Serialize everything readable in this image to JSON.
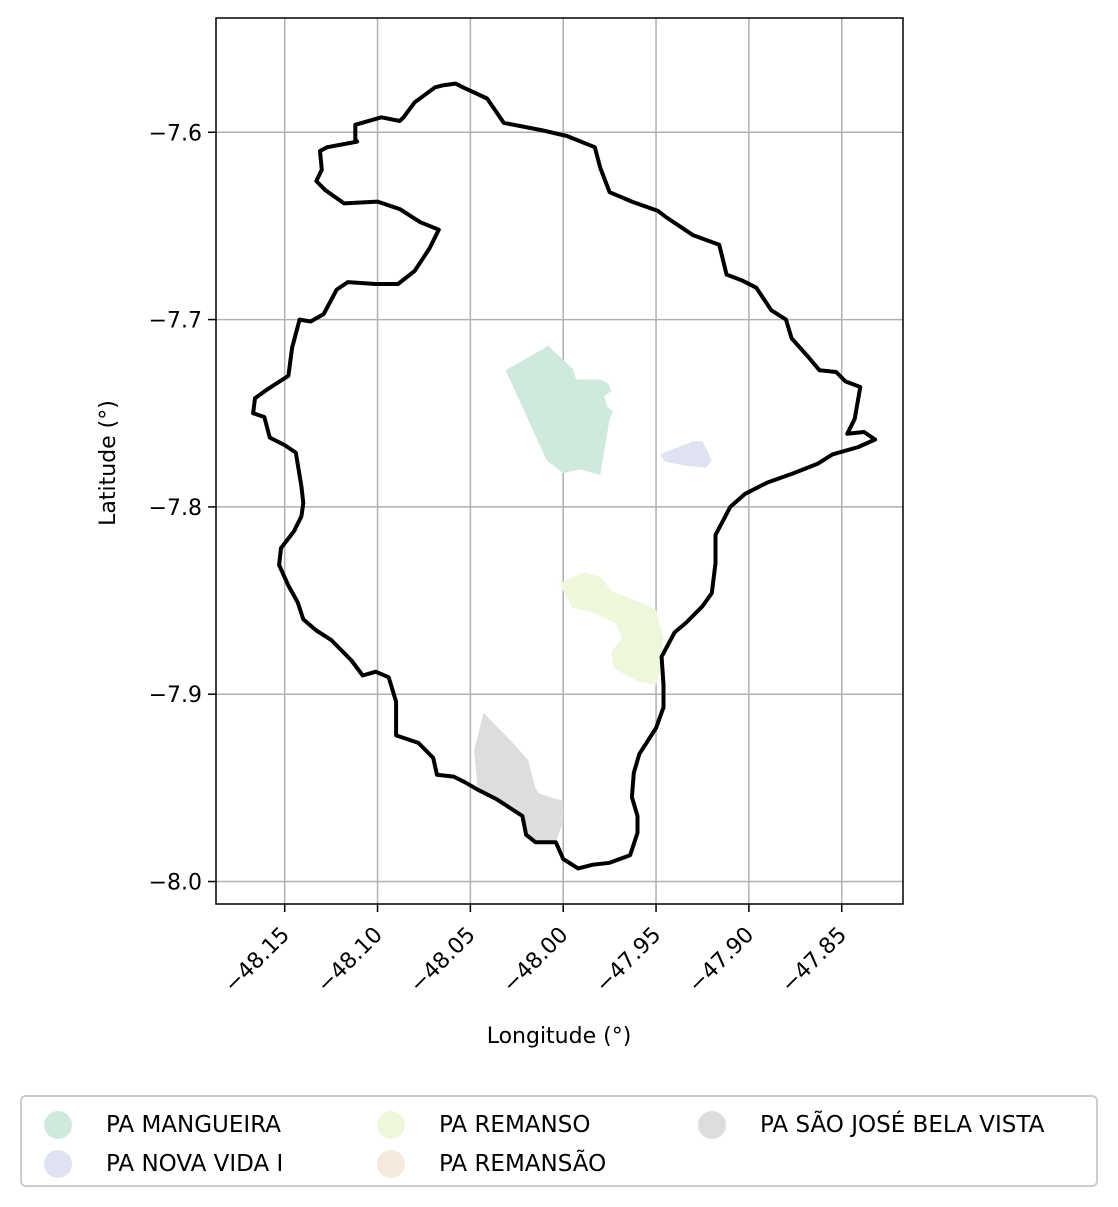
{
  "chart_data": {
    "type": "map",
    "title": "",
    "xlabel": "Longitude (°)",
    "ylabel": "Latitude (°)",
    "xlim": [
      -48.187,
      -47.817
    ],
    "ylim": [
      -8.012,
      -7.539
    ],
    "xticks": [
      -48.15,
      -48.1,
      -48.05,
      -48.0,
      -47.95,
      -47.9,
      -47.85
    ],
    "xtick_labels": [
      "−48.15",
      "−48.10",
      "−48.05",
      "−48.00",
      "−47.95",
      "−47.90",
      "−47.85"
    ],
    "yticks": [
      -7.6,
      -7.7,
      -7.8,
      -7.9,
      -8.0
    ],
    "ytick_labels": [
      "−7.6",
      "−7.7",
      "−7.8",
      "−7.9",
      "−8.0"
    ],
    "grid": true,
    "legend_position": "bottom",
    "boundary": [
      [
        -48.069,
        -7.576
      ],
      [
        -48.08,
        -7.584
      ],
      [
        -48.086,
        -7.592
      ],
      [
        -48.088,
        -7.594
      ],
      [
        -48.098,
        -7.592
      ],
      [
        -48.112,
        -7.596
      ],
      [
        -48.112,
        -7.604
      ],
      [
        -48.111,
        -7.605
      ],
      [
        -48.127,
        -7.608
      ],
      [
        -48.131,
        -7.61
      ],
      [
        -48.13,
        -7.62
      ],
      [
        -48.133,
        -7.626
      ],
      [
        -48.128,
        -7.631
      ],
      [
        -48.118,
        -7.638
      ],
      [
        -48.1,
        -7.637
      ],
      [
        -48.088,
        -7.641
      ],
      [
        -48.077,
        -7.648
      ],
      [
        -48.067,
        -7.652
      ],
      [
        -48.072,
        -7.662
      ],
      [
        -48.08,
        -7.674
      ],
      [
        -48.089,
        -7.681
      ],
      [
        -48.101,
        -7.681
      ],
      [
        -48.116,
        -7.68
      ],
      [
        -48.122,
        -7.684
      ],
      [
        -48.129,
        -7.697
      ],
      [
        -48.136,
        -7.701
      ],
      [
        -48.142,
        -7.7
      ],
      [
        -48.146,
        -7.715
      ],
      [
        -48.148,
        -7.73
      ],
      [
        -48.159,
        -7.737
      ],
      [
        -48.166,
        -7.742
      ],
      [
        -48.167,
        -7.75
      ],
      [
        -48.161,
        -7.752
      ],
      [
        -48.158,
        -7.763
      ],
      [
        -48.15,
        -7.767
      ],
      [
        -48.144,
        -7.771
      ],
      [
        -48.141,
        -7.789
      ],
      [
        -48.14,
        -7.798
      ],
      [
        -48.141,
        -7.805
      ],
      [
        -48.145,
        -7.813
      ],
      [
        -48.152,
        -7.822
      ],
      [
        -48.153,
        -7.831
      ],
      [
        -48.148,
        -7.842
      ],
      [
        -48.143,
        -7.851
      ],
      [
        -48.14,
        -7.86
      ],
      [
        -48.133,
        -7.866
      ],
      [
        -48.125,
        -7.871
      ],
      [
        -48.114,
        -7.882
      ],
      [
        -48.108,
        -7.89
      ],
      [
        -48.101,
        -7.888
      ],
      [
        -48.094,
        -7.891
      ],
      [
        -48.09,
        -7.904
      ],
      [
        -48.09,
        -7.922
      ],
      [
        -48.078,
        -7.926
      ],
      [
        -48.07,
        -7.934
      ],
      [
        -48.068,
        -7.943
      ],
      [
        -48.059,
        -7.944
      ],
      [
        -48.053,
        -7.947
      ],
      [
        -48.046,
        -7.951
      ],
      [
        -48.036,
        -7.956
      ],
      [
        -48.022,
        -7.965
      ],
      [
        -48.02,
        -7.975
      ],
      [
        -48.015,
        -7.979
      ],
      [
        -48.004,
        -7.979
      ],
      [
        -48.0,
        -7.988
      ],
      [
        -47.992,
        -7.993
      ],
      [
        -47.984,
        -7.991
      ],
      [
        -47.975,
        -7.99
      ],
      [
        -47.964,
        -7.986
      ],
      [
        -47.96,
        -7.974
      ],
      [
        -47.96,
        -7.965
      ],
      [
        -47.963,
        -7.955
      ],
      [
        -47.962,
        -7.942
      ],
      [
        -47.959,
        -7.932
      ],
      [
        -47.95,
        -7.918
      ],
      [
        -47.946,
        -7.907
      ],
      [
        -47.946,
        -7.895
      ],
      [
        -47.947,
        -7.88
      ],
      [
        -47.94,
        -7.867
      ],
      [
        -47.934,
        -7.862
      ],
      [
        -47.925,
        -7.853
      ],
      [
        -47.92,
        -7.846
      ],
      [
        -47.918,
        -7.83
      ],
      [
        -47.918,
        -7.815
      ],
      [
        -47.91,
        -7.8
      ],
      [
        -47.902,
        -7.793
      ],
      [
        -47.89,
        -7.787
      ],
      [
        -47.876,
        -7.782
      ],
      [
        -47.863,
        -7.777
      ],
      [
        -47.855,
        -7.772
      ],
      [
        -47.841,
        -7.768
      ],
      [
        -47.832,
        -7.764
      ],
      [
        -47.838,
        -7.76
      ],
      [
        -47.847,
        -7.761
      ],
      [
        -47.843,
        -7.753
      ],
      [
        -47.84,
        -7.736
      ],
      [
        -47.848,
        -7.733
      ],
      [
        -47.853,
        -7.728
      ],
      [
        -47.862,
        -7.727
      ],
      [
        -47.868,
        -7.72
      ],
      [
        -47.877,
        -7.71
      ],
      [
        -47.88,
        -7.7
      ],
      [
        -47.888,
        -7.695
      ],
      [
        -47.896,
        -7.683
      ],
      [
        -47.904,
        -7.679
      ],
      [
        -47.912,
        -7.676
      ],
      [
        -47.916,
        -7.66
      ],
      [
        -47.93,
        -7.655
      ],
      [
        -47.945,
        -7.645
      ],
      [
        -47.949,
        -7.642
      ],
      [
        -47.963,
        -7.637
      ],
      [
        -47.975,
        -7.632
      ],
      [
        -47.98,
        -7.619
      ],
      [
        -47.983,
        -7.608
      ],
      [
        -47.998,
        -7.602
      ],
      [
        -48.011,
        -7.599
      ],
      [
        -48.032,
        -7.595
      ],
      [
        -48.041,
        -7.582
      ],
      [
        -48.054,
        -7.576
      ],
      [
        -48.058,
        -7.574
      ],
      [
        -48.065,
        -7.575
      ]
    ],
    "series": [
      {
        "name": "PA MANGUEIRA",
        "color": "#cfeadd",
        "polygon": [
          [
            -48.031,
            -7.727
          ],
          [
            -48.008,
            -7.714
          ],
          [
            -48.005,
            -7.717
          ],
          [
            -47.995,
            -7.726
          ],
          [
            -47.993,
            -7.732
          ],
          [
            -47.98,
            -7.732
          ],
          [
            -47.976,
            -7.734
          ],
          [
            -47.974,
            -7.738
          ],
          [
            -47.978,
            -7.741
          ],
          [
            -47.976,
            -7.747
          ],
          [
            -47.973,
            -7.749
          ],
          [
            -47.975,
            -7.753
          ],
          [
            -47.98,
            -7.783
          ],
          [
            -47.991,
            -7.78
          ],
          [
            -48.0,
            -7.782
          ],
          [
            -48.009,
            -7.775
          ]
        ]
      },
      {
        "name": "PA NOVA VIDA I",
        "color": "#dfe3f1",
        "polygon": [
          [
            -47.948,
            -7.772
          ],
          [
            -47.93,
            -7.765
          ],
          [
            -47.925,
            -7.765
          ],
          [
            -47.92,
            -7.775
          ],
          [
            -47.923,
            -7.779
          ],
          [
            -47.934,
            -7.778
          ],
          [
            -47.945,
            -7.776
          ]
        ]
      },
      {
        "name": "PA REMANSO",
        "color": "#edf7dc",
        "polygon": [
          [
            -48.002,
            -7.841
          ],
          [
            -47.996,
            -7.838
          ],
          [
            -47.989,
            -7.835
          ],
          [
            -47.98,
            -7.837
          ],
          [
            -47.974,
            -7.845
          ],
          [
            -47.961,
            -7.85
          ],
          [
            -47.95,
            -7.855
          ],
          [
            -47.946,
            -7.87
          ],
          [
            -47.947,
            -7.885
          ],
          [
            -47.95,
            -7.895
          ],
          [
            -47.96,
            -7.893
          ],
          [
            -47.973,
            -7.886
          ],
          [
            -47.974,
            -7.877
          ],
          [
            -47.968,
            -7.87
          ],
          [
            -47.972,
            -7.862
          ],
          [
            -47.985,
            -7.856
          ],
          [
            -47.995,
            -7.854
          ]
        ]
      },
      {
        "name": "PA REMANSÃO",
        "color": "#f4e9dc",
        "polygon": []
      },
      {
        "name": "PA SÃO JOSÉ BELA VISTA",
        "color": "#dddddd",
        "polygon": [
          [
            -48.043,
            -7.91
          ],
          [
            -48.036,
            -7.917
          ],
          [
            -48.028,
            -7.925
          ],
          [
            -48.019,
            -7.935
          ],
          [
            -48.015,
            -7.95
          ],
          [
            -48.013,
            -7.953
          ],
          [
            -48.007,
            -7.955
          ],
          [
            -48.0,
            -7.957
          ],
          [
            -48.0,
            -7.968
          ],
          [
            -48.004,
            -7.979
          ],
          [
            -48.015,
            -7.979
          ],
          [
            -48.02,
            -7.975
          ],
          [
            -48.022,
            -7.965
          ],
          [
            -48.036,
            -7.956
          ],
          [
            -48.046,
            -7.951
          ],
          [
            -48.048,
            -7.93
          ]
        ]
      }
    ]
  }
}
